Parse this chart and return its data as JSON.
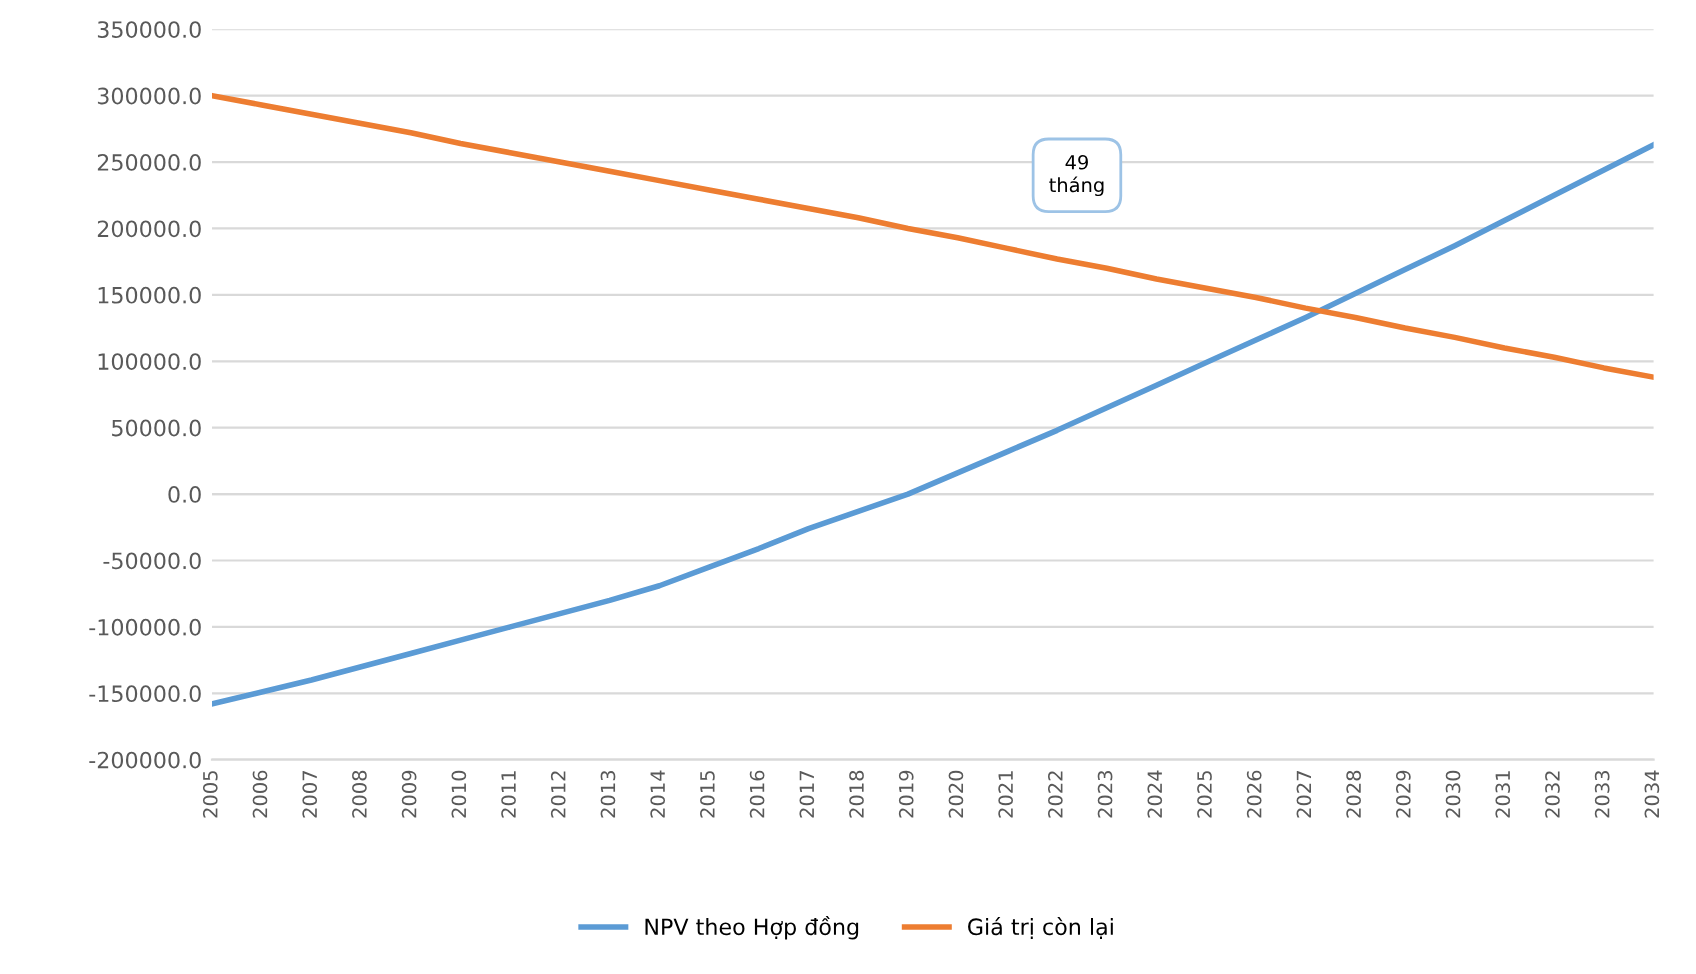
{
  "chart_data": {
    "type": "line",
    "categories": [
      "2005",
      "2006",
      "2007",
      "2008",
      "2009",
      "2010",
      "2011",
      "2012",
      "2013",
      "2014",
      "2015",
      "2016",
      "2017",
      "2018",
      "2019",
      "2020",
      "2021",
      "2022",
      "2023",
      "2024",
      "2025",
      "2026",
      "2027",
      "2028",
      "2029",
      "2030",
      "2031",
      "2032",
      "2033",
      "2034"
    ],
    "series": [
      {
        "name": "NPV theo Hợp đồng",
        "color": "#5b9bd5",
        "values": [
          -158000,
          -149000,
          -140000,
          -130000,
          -120000,
          -110000,
          -100000,
          -90000,
          -80000,
          -69000,
          -55000,
          -41000,
          -26000,
          -13000,
          0,
          16000,
          32000,
          48000,
          65000,
          82000,
          99000,
          116000,
          133000,
          151000,
          169000,
          187000,
          206000,
          225000,
          244000,
          263000
        ]
      },
      {
        "name": "Giá trị còn lại",
        "color": "#ed7d31",
        "values": [
          300000,
          293000,
          286000,
          279000,
          272000,
          264000,
          257000,
          250000,
          243000,
          236000,
          229000,
          222000,
          215000,
          208000,
          200000,
          193000,
          185000,
          177000,
          170000,
          162000,
          155000,
          148000,
          140000,
          133000,
          125000,
          118000,
          110000,
          103000,
          95000,
          88000
        ]
      }
    ],
    "ylim": [
      -200000,
      350000
    ],
    "yticks": [
      {
        "value": -200000,
        "label": "-200000.0"
      },
      {
        "value": -150000,
        "label": "-150000.0"
      },
      {
        "value": -100000,
        "label": "-100000.0"
      },
      {
        "value": -50000,
        "label": "-50000.0"
      },
      {
        "value": 0,
        "label": "0.0"
      },
      {
        "value": 50000,
        "label": "50000.0"
      },
      {
        "value": 100000,
        "label": "100000.0"
      },
      {
        "value": 150000,
        "label": "150000.0"
      },
      {
        "value": 200000,
        "label": "200000.0"
      },
      {
        "value": 250000,
        "label": "250000.0"
      },
      {
        "value": 300000,
        "label": "300000.0"
      },
      {
        "value": 350000,
        "label": "350000.0"
      }
    ],
    "annotations": [
      "49\ntháng"
    ],
    "grid": "y",
    "legend": "bottom",
    "marker": "none",
    "line_style": "solid"
  }
}
